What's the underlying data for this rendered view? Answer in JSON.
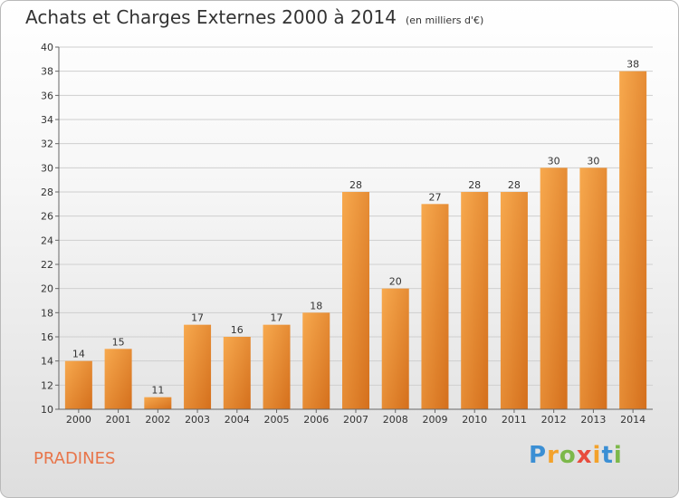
{
  "title": "Achats et Charges Externes 2000 à 2014",
  "unit": "(en milliers d'€)",
  "commune": "PRADINES",
  "logo": {
    "letters": [
      "P",
      "r",
      "o",
      "x",
      "i",
      "t",
      "i"
    ],
    "colors": [
      "#3b8fd4",
      "#f3a22b",
      "#7cb84a",
      "#e84c3d",
      "#f3a22b",
      "#3b8fd4",
      "#7cb84a"
    ]
  },
  "colors": {
    "bar": "#f09a3e",
    "bar_dark": "#d9731f",
    "grid": "#cccccc"
  },
  "chart_data": {
    "type": "bar",
    "categories": [
      "2000",
      "2001",
      "2002",
      "2003",
      "2004",
      "2005",
      "2006",
      "2007",
      "2008",
      "2009",
      "2010",
      "2011",
      "2012",
      "2013",
      "2014"
    ],
    "values": [
      14,
      15,
      11,
      17,
      16,
      17,
      18,
      28,
      20,
      27,
      28,
      28,
      30,
      30,
      38
    ],
    "ylim": [
      10,
      40
    ],
    "yticks": [
      10,
      12,
      14,
      16,
      18,
      20,
      22,
      24,
      26,
      28,
      30,
      32,
      34,
      36,
      38,
      40
    ],
    "grid": true
  }
}
